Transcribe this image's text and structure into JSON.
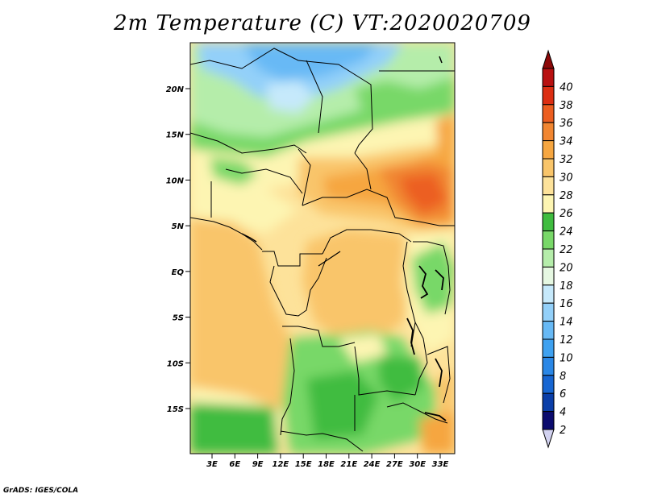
{
  "title": "2m Temperature (C) VT:2020020709",
  "credit": "GrADS: IGES/COLA",
  "map": {
    "lat_ticks": [
      "20N",
      "15N",
      "10N",
      "5N",
      "EQ",
      "5S",
      "10S",
      "15S"
    ],
    "lon_ticks": [
      "3E",
      "6E",
      "9E",
      "12E",
      "15E",
      "18E",
      "21E",
      "24E",
      "27E",
      "30E",
      "33E"
    ],
    "lat_values": [
      20,
      15,
      10,
      5,
      0,
      -5,
      -10,
      -15
    ],
    "lon_values": [
      3,
      6,
      9,
      12,
      15,
      18,
      21,
      24,
      27,
      30,
      33
    ]
  },
  "colorbar": {
    "labels": [
      "2",
      "4",
      "6",
      "8",
      "10",
      "12",
      "14",
      "16",
      "18",
      "20",
      "22",
      "24",
      "26",
      "28",
      "30",
      "32",
      "34",
      "36",
      "38",
      "40"
    ],
    "colors": [
      "#0b0b6e",
      "#0a3ea8",
      "#1766d2",
      "#2a87e6",
      "#3ea1f0",
      "#67b9f5",
      "#93d0f9",
      "#c6e9fb",
      "#e6f8e2",
      "#b5edaa",
      "#78d868",
      "#3fbc3f",
      "#fdf5b2",
      "#fde29a",
      "#f9c56a",
      "#f6a640",
      "#f18631",
      "#ec5e20",
      "#dc2e12",
      "#b81010",
      "#8c0808"
    ],
    "over_color": "#8c0808",
    "under_color": "#d2d2f0"
  }
}
